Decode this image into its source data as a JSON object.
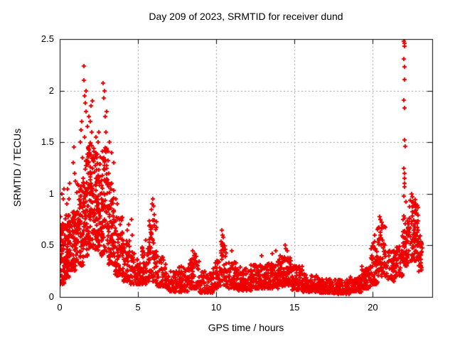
{
  "window_title": "Day 209 of 2023, SRMTID for receiver dund",
  "chart_data": {
    "type": "scatter",
    "title": "Day 209 of 2023, SRMTID for receiver dund",
    "xlabel": "GPS time / hours",
    "ylabel": "SRMTID / TECUs",
    "xlim": [
      0,
      23.8
    ],
    "ylim": [
      0,
      2.5
    ],
    "xticks": [
      0,
      5,
      10,
      15,
      20
    ],
    "xtick_labels": [
      "0",
      "5",
      "10",
      "15",
      "20"
    ],
    "yticks": [
      0,
      0.5,
      1,
      1.5,
      2,
      2.5
    ],
    "ytick_labels": [
      "0",
      "0.5",
      "1",
      "1.5",
      "2",
      "2.5"
    ],
    "grid": true,
    "legend": "none",
    "series_name": "SRMTID",
    "marker": {
      "symbol": "plus",
      "color": "#ee0000",
      "size": 7,
      "stroke": 2
    },
    "grid_color": "#9e9e9e",
    "axis_color": "#000000",
    "background_color": "#ffffff",
    "seed": 42,
    "envelope_format": [
      "t_start_hours",
      "t_end_hours",
      "num_points",
      "value_min",
      "value_max",
      "low_bias_exponent"
    ],
    "envelope": [
      [
        0.0,
        0.3,
        60,
        0.12,
        0.78,
        1.3
      ],
      [
        0.3,
        0.7,
        85,
        0.18,
        0.8,
        1.3
      ],
      [
        0.7,
        1.1,
        70,
        0.25,
        0.85,
        1.25
      ],
      [
        1.1,
        1.5,
        70,
        0.3,
        1.1,
        1.25
      ],
      [
        1.5,
        1.8,
        60,
        0.4,
        1.45,
        1.15
      ],
      [
        1.8,
        2.2,
        85,
        0.45,
        1.5,
        1.2
      ],
      [
        2.2,
        2.6,
        85,
        0.45,
        1.4,
        1.25
      ],
      [
        2.6,
        3.1,
        85,
        0.4,
        1.45,
        1.2
      ],
      [
        3.1,
        3.5,
        70,
        0.3,
        1.1,
        1.25
      ],
      [
        3.5,
        4.0,
        70,
        0.2,
        0.8,
        1.4
      ],
      [
        4.0,
        4.5,
        60,
        0.15,
        0.55,
        1.5
      ],
      [
        4.5,
        5.2,
        60,
        0.12,
        0.45,
        1.5
      ],
      [
        5.2,
        5.7,
        50,
        0.12,
        0.5,
        1.5
      ],
      [
        5.7,
        6.2,
        60,
        0.15,
        0.75,
        1.3
      ],
      [
        6.2,
        6.8,
        55,
        0.1,
        0.4,
        1.6
      ],
      [
        6.8,
        7.6,
        65,
        0.05,
        0.25,
        1.5
      ],
      [
        7.6,
        8.2,
        60,
        0.05,
        0.3,
        1.5
      ],
      [
        8.2,
        8.9,
        65,
        0.08,
        0.4,
        1.5
      ],
      [
        8.9,
        9.8,
        75,
        0.04,
        0.25,
        1.6
      ],
      [
        9.8,
        10.2,
        40,
        0.08,
        0.35,
        1.5
      ],
      [
        10.2,
        10.7,
        45,
        0.1,
        0.55,
        1.4
      ],
      [
        10.7,
        11.3,
        55,
        0.08,
        0.35,
        1.5
      ],
      [
        11.3,
        12.2,
        85,
        0.06,
        0.3,
        1.6
      ],
      [
        12.2,
        13.2,
        95,
        0.08,
        0.32,
        1.6
      ],
      [
        13.2,
        14.0,
        85,
        0.08,
        0.35,
        1.5
      ],
      [
        14.0,
        14.8,
        85,
        0.1,
        0.4,
        1.4
      ],
      [
        14.8,
        15.5,
        70,
        0.06,
        0.3,
        1.6
      ],
      [
        15.5,
        16.5,
        95,
        0.05,
        0.22,
        1.6
      ],
      [
        16.5,
        17.5,
        95,
        0.04,
        0.18,
        1.6
      ],
      [
        17.5,
        18.5,
        95,
        0.03,
        0.17,
        1.6
      ],
      [
        18.5,
        19.3,
        80,
        0.05,
        0.2,
        1.6
      ],
      [
        19.3,
        19.9,
        60,
        0.08,
        0.3,
        1.5
      ],
      [
        19.9,
        20.3,
        45,
        0.12,
        0.55,
        1.3
      ],
      [
        20.3,
        20.8,
        55,
        0.2,
        0.7,
        1.3
      ],
      [
        20.8,
        21.4,
        50,
        0.15,
        0.45,
        1.4
      ],
      [
        21.4,
        21.9,
        45,
        0.2,
        0.5,
        1.4
      ],
      [
        21.9,
        22.3,
        55,
        0.3,
        0.8,
        1.3
      ],
      [
        22.3,
        22.9,
        80,
        0.35,
        0.95,
        1.25
      ],
      [
        22.9,
        23.15,
        30,
        0.25,
        0.6,
        1.4
      ]
    ],
    "outliers": [
      [
        0.15,
        1.0
      ],
      [
        0.22,
        0.95
      ],
      [
        0.28,
        1.05
      ],
      [
        0.45,
        0.9
      ],
      [
        0.5,
        1.05
      ],
      [
        0.58,
        0.95
      ],
      [
        0.62,
        1.1
      ],
      [
        0.85,
        1.3
      ],
      [
        0.9,
        1.45
      ],
      [
        0.95,
        1.2
      ],
      [
        1.0,
        1.12
      ],
      [
        1.3,
        1.5
      ],
      [
        1.35,
        1.62
      ],
      [
        1.42,
        1.7
      ],
      [
        1.45,
        1.35
      ],
      [
        1.55,
        2.24
      ],
      [
        1.55,
        2.1
      ],
      [
        1.58,
        1.55
      ],
      [
        1.6,
        1.95
      ],
      [
        1.63,
        1.88
      ],
      [
        1.66,
        1.8
      ],
      [
        1.7,
        2.0
      ],
      [
        1.75,
        1.65
      ],
      [
        1.85,
        1.75
      ],
      [
        1.95,
        1.7
      ],
      [
        2.0,
        1.85
      ],
      [
        2.05,
        1.6
      ],
      [
        2.1,
        1.9
      ],
      [
        2.3,
        1.55
      ],
      [
        2.45,
        1.5
      ],
      [
        2.52,
        1.6
      ],
      [
        2.75,
        2.07
      ],
      [
        2.8,
        1.93
      ],
      [
        2.85,
        2.0
      ],
      [
        2.9,
        1.75
      ],
      [
        2.95,
        1.6
      ],
      [
        3.0,
        1.8
      ],
      [
        3.15,
        1.2
      ],
      [
        3.2,
        1.5
      ],
      [
        3.3,
        1.4
      ],
      [
        3.45,
        1.3
      ],
      [
        3.6,
        0.95
      ],
      [
        3.7,
        0.9
      ],
      [
        4.3,
        0.65
      ],
      [
        4.42,
        0.7
      ],
      [
        4.6,
        0.75
      ],
      [
        4.65,
        0.6
      ],
      [
        5.5,
        0.55
      ],
      [
        5.85,
        0.85
      ],
      [
        5.9,
        0.9
      ],
      [
        5.95,
        0.95
      ],
      [
        6.0,
        0.88
      ],
      [
        6.05,
        0.8
      ],
      [
        8.5,
        0.45
      ],
      [
        8.62,
        0.42
      ],
      [
        10.35,
        0.65
      ],
      [
        10.4,
        0.6
      ],
      [
        10.46,
        0.58
      ],
      [
        11.0,
        0.45
      ],
      [
        12.9,
        0.4
      ],
      [
        13.6,
        0.42
      ],
      [
        13.8,
        0.45
      ],
      [
        14.4,
        0.5
      ],
      [
        14.45,
        0.47
      ],
      [
        14.52,
        0.45
      ],
      [
        20.1,
        0.6
      ],
      [
        20.45,
        0.78
      ],
      [
        20.5,
        0.75
      ],
      [
        20.56,
        0.72
      ],
      [
        22.0,
        2.48
      ],
      [
        22.02,
        2.46
      ],
      [
        22.05,
        2.5
      ],
      [
        22.03,
        2.43
      ],
      [
        22.0,
        2.31
      ],
      [
        22.05,
        2.23
      ],
      [
        22.02,
        2.11
      ],
      [
        22.0,
        1.91
      ],
      [
        22.04,
        1.83
      ],
      [
        22.03,
        1.52
      ],
      [
        22.06,
        1.46
      ],
      [
        22.0,
        1.25
      ],
      [
        22.03,
        1.2
      ],
      [
        22.05,
        1.15
      ],
      [
        22.02,
        1.1
      ],
      [
        22.04,
        1.07
      ],
      [
        22.0,
        0.98
      ],
      [
        22.1,
        0.92
      ],
      [
        22.5,
        1.0
      ],
      [
        22.55,
        0.97
      ]
    ]
  }
}
